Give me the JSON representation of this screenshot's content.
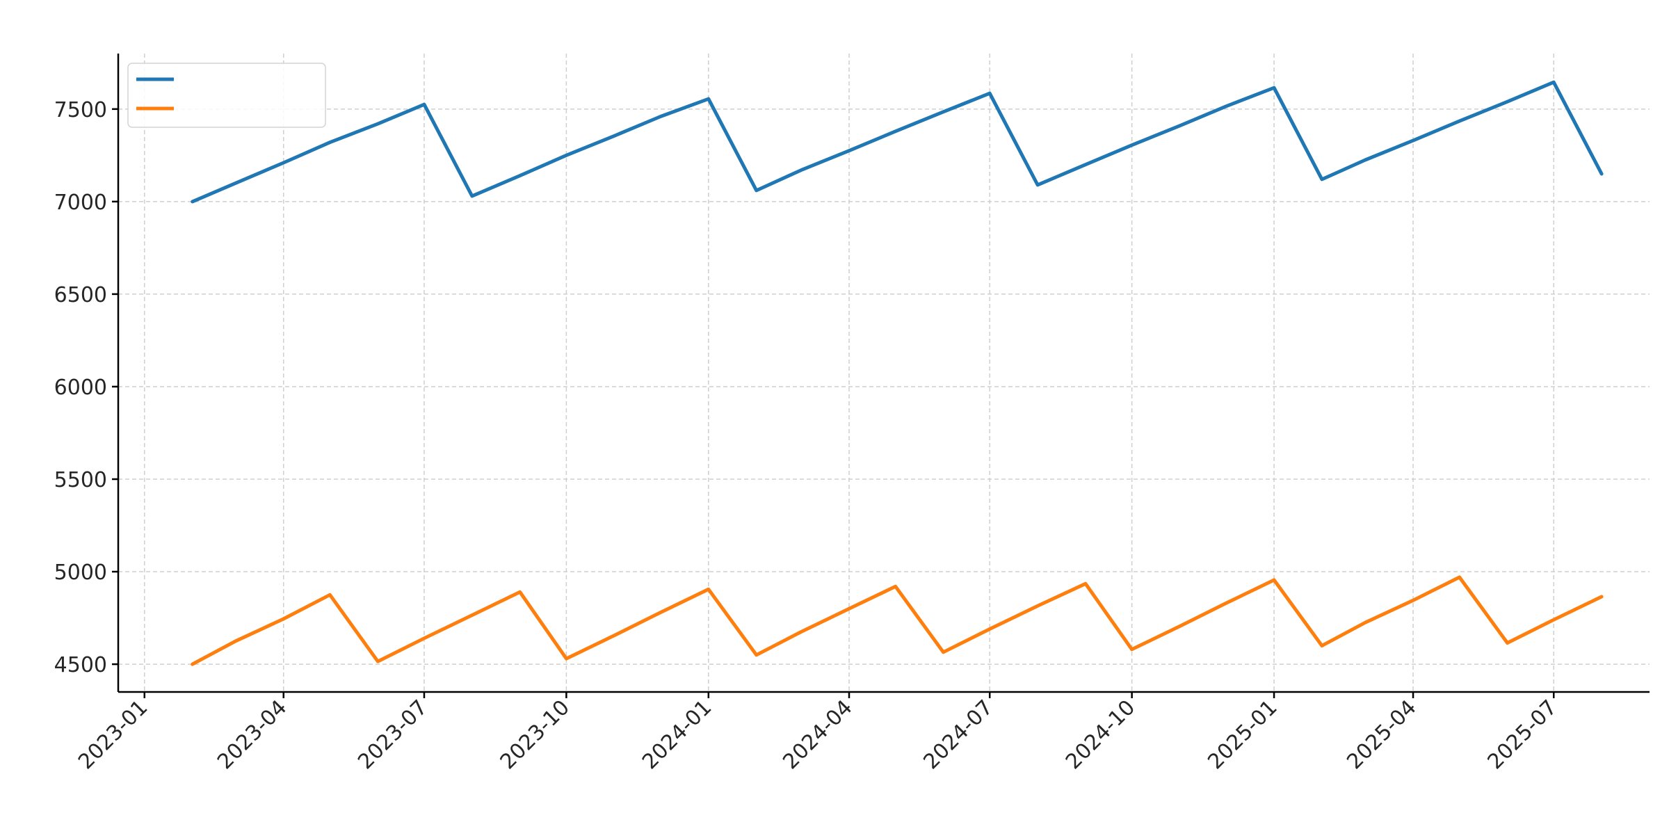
{
  "chart_data": {
    "type": "line",
    "title": "",
    "xlabel": "",
    "ylabel": "",
    "x": [
      "2023-02",
      "2023-03",
      "2023-04",
      "2023-05",
      "2023-06",
      "2023-07",
      "2023-08",
      "2023-09",
      "2023-10",
      "2023-11",
      "2023-12",
      "2024-01",
      "2024-02",
      "2024-03",
      "2024-04",
      "2024-05",
      "2024-06",
      "2024-07",
      "2024-08",
      "2024-09",
      "2024-10",
      "2024-11",
      "2024-12",
      "2025-01",
      "2025-02",
      "2025-03",
      "2025-04",
      "2025-05",
      "2025-06",
      "2025-07",
      "2025-08"
    ],
    "series": [
      {
        "name": "",
        "color": "#1f77b4",
        "values": [
          7000,
          7100,
          7210,
          7320,
          7420,
          7525,
          7030,
          7140,
          7250,
          7355,
          7460,
          7555,
          7060,
          7170,
          7275,
          7380,
          7485,
          7585,
          7090,
          7200,
          7305,
          7410,
          7515,
          7615,
          7120,
          7225,
          7330,
          7435,
          7540,
          7645,
          7150
        ]
      },
      {
        "name": "",
        "color": "#ff7f0e",
        "values": [
          4500,
          4625,
          4745,
          4875,
          4515,
          4640,
          4765,
          4890,
          4530,
          4655,
          4780,
          4905,
          4550,
          4675,
          4800,
          4920,
          4565,
          4690,
          4815,
          4935,
          4580,
          4705,
          4830,
          4955,
          4600,
          4725,
          4845,
          4970,
          4615,
          4740,
          4865
        ]
      }
    ],
    "x_ticks": [
      "2023-01",
      "2023-04",
      "2023-07",
      "2023-10",
      "2024-01",
      "2024-04",
      "2024-07",
      "2024-10",
      "2025-01",
      "2025-04",
      "2025-07"
    ],
    "y_ticks": [
      4500,
      5000,
      5500,
      6000,
      6500,
      7000,
      7500
    ],
    "xlim": [
      "2022-12-15",
      "2025-09-01"
    ],
    "ylim": [
      4350,
      7800
    ],
    "grid": true,
    "legend_position": "top-left"
  }
}
